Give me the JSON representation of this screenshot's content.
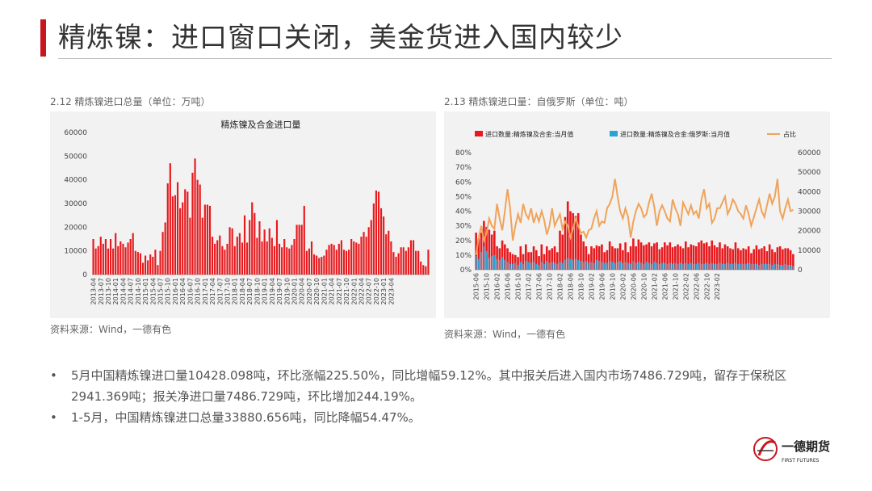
{
  "header": {
    "title": "精炼镍：进口窗口关闭，美金货进入国内较少"
  },
  "left_chart": {
    "caption": "2.12 精炼镍进口总量（单位：万吨）",
    "source": "资料来源：Wind，一德有色"
  },
  "right_chart": {
    "caption": "2.13 精炼镍进口量：自俄罗斯（单位：吨）",
    "source": "资料来源：Wind，一德有色"
  },
  "bullets": {
    "b1_line1": "5月中国精炼镍进口量10428.098吨，环比涨幅225.50%，同比增幅59.12%。其中报关后进入国内市场7486.729吨，留存于保税区",
    "b1_line2": "2941.369吨；报关净进口量7486.729吨，环比增加244.19%。",
    "b2": "1-5月，中国精炼镍进口总量33880.656吨，同比降幅54.47%。",
    "marker": "•"
  },
  "logo": {
    "cn": "一德期货",
    "en": "FIRST FUTURES"
  },
  "colors": {
    "accent": "#c8161d",
    "bar_red": "#e8191d",
    "bar_blue": "#2aa3d8",
    "line_orange": "#f0a35a"
  },
  "chart_data": [
    {
      "type": "bar",
      "title": "精炼镍及合金进口量",
      "xlabel": "",
      "ylabel": "",
      "ylim": [
        0,
        60000
      ],
      "yticks": [
        0,
        10000,
        20000,
        30000,
        40000,
        50000,
        60000
      ],
      "x_tick_labels": [
        "2013-04",
        "2013-07",
        "2013-10",
        "2014-01",
        "2014-04",
        "2014-07",
        "2014-10",
        "2015-01",
        "2015-04",
        "2015-07",
        "2015-10",
        "2016-01",
        "2016-04",
        "2016-07",
        "2016-10",
        "2017-01",
        "2017-04",
        "2017-07",
        "2017-10",
        "2018-01",
        "2018-04",
        "2018-07",
        "2018-10",
        "2019-01",
        "2019-04",
        "2019-07",
        "2019-10",
        "2020-01",
        "2020-04",
        "2020-07",
        "2020-10",
        "2021-01",
        "2021-04",
        "2021-07",
        "2021-10",
        "2022-01",
        "2022-04",
        "2022-07",
        "2022-10",
        "2023-01",
        "2023-04"
      ],
      "start": "2013-04",
      "series": [
        {
          "values": [
            15000,
            11000,
            12000,
            16000,
            13000,
            15000,
            11000,
            15000,
            11000,
            17500,
            12000,
            14000,
            13000,
            11500,
            13500,
            15000,
            17500,
            10000,
            9500,
            9000,
            5000,
            8000,
            6000,
            8500,
            7500,
            10500,
            4000,
            10000,
            18000,
            22000,
            38500,
            47000,
            33000,
            33500,
            39000,
            28000,
            30500,
            36000,
            35000,
            24000,
            43000,
            49000,
            40000,
            38000,
            24000,
            29500,
            29500,
            29000,
            16000,
            13000,
            14500,
            16500,
            12000,
            10500,
            13000,
            20000,
            19500,
            12000,
            16000,
            17500,
            13500,
            25000,
            13500,
            23000,
            30500,
            26000,
            15500,
            22500,
            14000,
            19000,
            14000,
            19500,
            15500,
            12000,
            23000,
            13000,
            11500,
            15000,
            11500,
            11000,
            12500,
            15000,
            21000,
            21000,
            21000,
            29000,
            10000,
            11000,
            14000,
            8500,
            8000,
            7000,
            7500,
            8000,
            10500,
            12500,
            13000,
            12500,
            10500,
            13000,
            14500,
            10500,
            10000,
            10500,
            15000,
            14000,
            13500,
            13000,
            16000,
            18000,
            16000,
            20000,
            23000,
            30000,
            35500,
            35000,
            28000,
            24500,
            17000,
            18500,
            14000,
            9500,
            7500,
            9000,
            11500,
            11500,
            10000,
            11500,
            14500,
            14500,
            10000,
            10000,
            5500,
            4000,
            3500,
            10500
          ]
        }
      ]
    },
    {
      "type": "bar",
      "title": "",
      "legend": [
        "进口数量:精炼镍及合金:当月值",
        "进口数量:精炼镍及合金:俄罗斯:当月值",
        "占比"
      ],
      "legend_position": "top",
      "ylim_left": [
        0,
        0.8
      ],
      "yticks_left": [
        "0%",
        "10%",
        "20%",
        "30%",
        "40%",
        "50%",
        "60%",
        "70%",
        "80%"
      ],
      "ylim_right": [
        0,
        60000
      ],
      "yticks_right": [
        0,
        10000,
        20000,
        30000,
        40000,
        50000,
        60000
      ],
      "x_tick_labels": [
        "2015-06",
        "2015-10",
        "2016-02",
        "2016-06",
        "2016-10",
        "2017-02",
        "2017-06",
        "2017-10",
        "2018-02",
        "2018-06",
        "2018-10",
        "2019-02",
        "2019-06",
        "2019-10",
        "2020-02",
        "2020-06",
        "2020-10",
        "2021-02",
        "2021-06",
        "2021-10",
        "2022-02",
        "2022-06",
        "2022-10",
        "2023-02"
      ],
      "start": "2015-06",
      "series": [
        {
          "name": "进口数量:精炼镍及合金:当月值",
          "axis": "right",
          "values": [
            19000,
            16000,
            19000,
            25000,
            22000,
            20500,
            18000,
            20000,
            12000,
            11000,
            15000,
            13000,
            11000,
            9000,
            8000,
            7500,
            6500,
            12000,
            8000,
            13000,
            9000,
            9000,
            12000,
            10000,
            7000,
            13000,
            8000,
            12000,
            10000,
            11000,
            12000,
            9000,
            20000,
            18000,
            27000,
            35000,
            30000,
            29000,
            27500,
            29000,
            18000,
            14500,
            12000,
            8000,
            12000,
            11000,
            12500,
            12000,
            13000,
            9000,
            10000,
            14500,
            12000,
            11000,
            11000,
            13500,
            10000,
            14000,
            9000,
            12000,
            16000,
            12000,
            15500,
            14000,
            12500,
            13000,
            14000,
            12000,
            13500,
            14000,
            10500,
            11500,
            14000,
            12500,
            14000,
            11500,
            12000,
            13000,
            12000,
            11000,
            14500,
            11500,
            13000,
            12500,
            12000,
            14000,
            15000,
            13500,
            14000,
            12000,
            15000,
            12500,
            11500,
            14000,
            11000,
            13000,
            12000,
            11000,
            10500,
            14000,
            11000,
            10000,
            11000,
            10500,
            12000,
            8500,
            10500,
            12500,
            10500,
            11000,
            12000,
            9500,
            13000,
            10500,
            9000,
            11500,
            12000,
            10500,
            11000,
            11000,
            10000,
            8000
          ]
        },
        {
          "name": "进口数量:精炼镍及合金:俄罗斯:当月值",
          "axis": "right",
          "values": [
            7000,
            5500,
            9000,
            12000,
            9500,
            6000,
            7000,
            7500,
            5500,
            5000,
            6500,
            5000,
            4000,
            3000,
            3000,
            3500,
            2500,
            4000,
            3000,
            4500,
            4000,
            3500,
            4000,
            3000,
            2500,
            4000,
            3000,
            4500,
            3500,
            4000,
            3500,
            3000,
            4000,
            3500,
            5000,
            6000,
            5500,
            5000,
            5500,
            5000,
            4500,
            4000,
            4500,
            3500,
            4000,
            3500,
            5000,
            4500,
            4000,
            3500,
            3500,
            4500,
            4000,
            3500,
            4000,
            4500,
            3500,
            4000,
            3500,
            3000,
            4500,
            3500,
            4000,
            3500,
            3000,
            4000,
            3500,
            3000,
            4000,
            3500,
            3000,
            3500,
            3500,
            3000,
            3500,
            3000,
            3500,
            3000,
            3500,
            3000,
            3500,
            3000,
            3500,
            3000,
            3000,
            3500,
            3000,
            3000,
            3500,
            3000,
            3500,
            3000,
            3000,
            3500,
            3000,
            3000,
            3500,
            3000,
            3000,
            3500,
            3000,
            3000,
            3000,
            3000,
            3500,
            3000,
            3000,
            3000,
            2500,
            3000,
            3000,
            3000,
            3000,
            2500,
            3000,
            3000,
            2500,
            2500,
            3000,
            2500,
            2500,
            2000
          ]
        },
        {
          "name": "占比",
          "axis": "left",
          "values": [
            0.1,
            0.22,
            0.3,
            0.2,
            0.25,
            0.35,
            0.3,
            0.28,
            0.45,
            0.35,
            0.27,
            0.4,
            0.55,
            0.42,
            0.2,
            0.3,
            0.38,
            0.32,
            0.45,
            0.38,
            0.35,
            0.42,
            0.32,
            0.38,
            0.33,
            0.4,
            0.34,
            0.24,
            0.3,
            0.42,
            0.3,
            0.34,
            0.38,
            0.28,
            0.33,
            0.3,
            0.22,
            0.28,
            0.35,
            0.3,
            0.25,
            0.26,
            0.22,
            0.27,
            0.28,
            0.35,
            0.4,
            0.3,
            0.33,
            0.32,
            0.42,
            0.45,
            0.5,
            0.62,
            0.5,
            0.4,
            0.35,
            0.42,
            0.36,
            0.22,
            0.33,
            0.4,
            0.45,
            0.42,
            0.36,
            0.38,
            0.46,
            0.52,
            0.43,
            0.3,
            0.4,
            0.44,
            0.4,
            0.35,
            0.33,
            0.48,
            0.42,
            0.38,
            0.3,
            0.46,
            0.42,
            0.38,
            0.44,
            0.38,
            0.4,
            0.35,
            0.48,
            0.55,
            0.42,
            0.45,
            0.32,
            0.35,
            0.42,
            0.42,
            0.46,
            0.5,
            0.38,
            0.42,
            0.48,
            0.45,
            0.4,
            0.38,
            0.35,
            0.44,
            0.38,
            0.3,
            0.36,
            0.42,
            0.48,
            0.4,
            0.36,
            0.44,
            0.52,
            0.45,
            0.5,
            0.62,
            0.4,
            0.35,
            0.42,
            0.48,
            0.4,
            0.41
          ]
        }
      ]
    }
  ]
}
